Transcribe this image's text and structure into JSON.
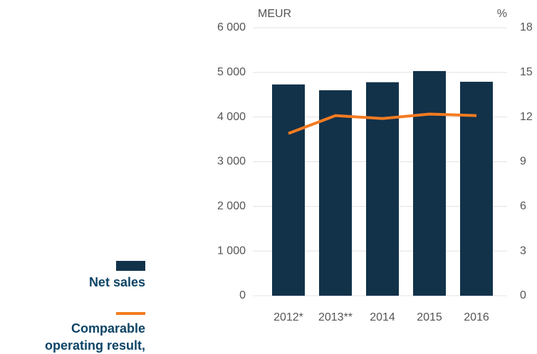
{
  "chart_data": {
    "type": "bar_line",
    "y_label": "MEUR",
    "y2_label": "%",
    "categories": [
      "2012*",
      "2013**",
      "2014",
      "2015",
      "2016"
    ],
    "series": [
      {
        "name": "Net sales",
        "type": "bar",
        "color": "#12324a",
        "values": [
          4730,
          4600,
          4780,
          5030,
          4790
        ]
      },
      {
        "name": "Comparable operating result, %",
        "type": "line",
        "axis": "y2",
        "color": "#f47b20",
        "values": [
          10.9,
          12.1,
          11.9,
          12.2,
          12.1
        ]
      }
    ],
    "ylim": [
      0,
      6000
    ],
    "yticks": [
      {
        "value": 0,
        "label": "0"
      },
      {
        "value": 1000,
        "label": "1 000"
      },
      {
        "value": 2000,
        "label": "2 000"
      },
      {
        "value": 3000,
        "label": "3 000"
      },
      {
        "value": 4000,
        "label": "4 000"
      },
      {
        "value": 5000,
        "label": "5 000"
      },
      {
        "value": 6000,
        "label": "6 000"
      }
    ],
    "y2lim": [
      0,
      18
    ],
    "y2ticks": [
      0,
      3,
      6,
      9,
      12,
      15,
      18
    ],
    "grid": true
  }
}
